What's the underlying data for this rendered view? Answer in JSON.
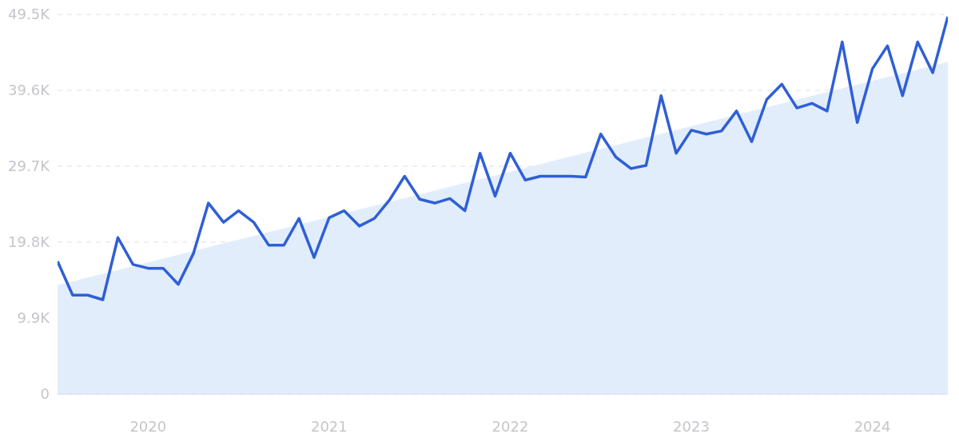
{
  "chart_data": {
    "type": "line",
    "x": [
      "2019-07",
      "2019-08",
      "2019-09",
      "2019-10",
      "2019-11",
      "2019-12",
      "2020-01",
      "2020-02",
      "2020-03",
      "2020-04",
      "2020-05",
      "2020-06",
      "2020-07",
      "2020-08",
      "2020-09",
      "2020-10",
      "2020-11",
      "2020-12",
      "2021-01",
      "2021-02",
      "2021-03",
      "2021-04",
      "2021-05",
      "2021-06",
      "2021-07",
      "2021-08",
      "2021-09",
      "2021-10",
      "2021-11",
      "2021-12",
      "2022-01",
      "2022-02",
      "2022-03",
      "2022-04",
      "2022-05",
      "2022-06",
      "2022-07",
      "2022-08",
      "2022-09",
      "2022-10",
      "2022-11",
      "2022-12",
      "2023-01",
      "2023-02",
      "2023-03",
      "2023-04",
      "2023-05",
      "2023-06",
      "2023-07",
      "2023-08",
      "2023-09",
      "2023-10",
      "2023-11",
      "2023-12",
      "2024-01",
      "2024-02",
      "2024-03",
      "2024-04",
      "2024-05",
      "2024-06"
    ],
    "series": [
      {
        "type": "area",
        "color": "#e2edfb",
        "x": [
          "2019-07",
          "2024-06"
        ],
        "values": [
          14200,
          43300
        ]
      },
      {
        "color": "#2f5fd6",
        "values": [
          17300,
          12900,
          12900,
          12300,
          20400,
          16900,
          16400,
          16400,
          14300,
          18300,
          24900,
          22400,
          23900,
          22400,
          19400,
          19400,
          22900,
          17800,
          23000,
          23900,
          21900,
          22900,
          25300,
          28400,
          25400,
          24900,
          25500,
          23900,
          31400,
          25800,
          31400,
          27900,
          28400,
          28400,
          28400,
          28300,
          33900,
          30900,
          29400,
          29800,
          38900,
          31400,
          34400,
          33900,
          34300,
          36900,
          32900,
          38400,
          40400,
          37300,
          37900,
          36900,
          45900,
          35400,
          42400,
          45400,
          38900,
          45900,
          41900,
          49200
        ]
      }
    ],
    "xlim": [
      "2019-07",
      "2024-06"
    ],
    "xticks": [
      {
        "value": "2020-01",
        "label": "2020"
      },
      {
        "value": "2021-01",
        "label": "2021"
      },
      {
        "value": "2022-01",
        "label": "2022"
      },
      {
        "value": "2023-01",
        "label": "2023"
      },
      {
        "value": "2024-01",
        "label": "2024"
      }
    ],
    "ylim": [
      0,
      49500
    ],
    "yticks": [
      0,
      {
        "value": 9900,
        "label": "9.9K"
      },
      {
        "value": 19800,
        "label": "19.8K"
      },
      {
        "value": 29700,
        "label": "29.7K"
      },
      {
        "value": 39600,
        "label": "39.6K"
      },
      {
        "value": 49500,
        "label": "49.5K"
      }
    ],
    "grid": "y",
    "legend": false
  }
}
